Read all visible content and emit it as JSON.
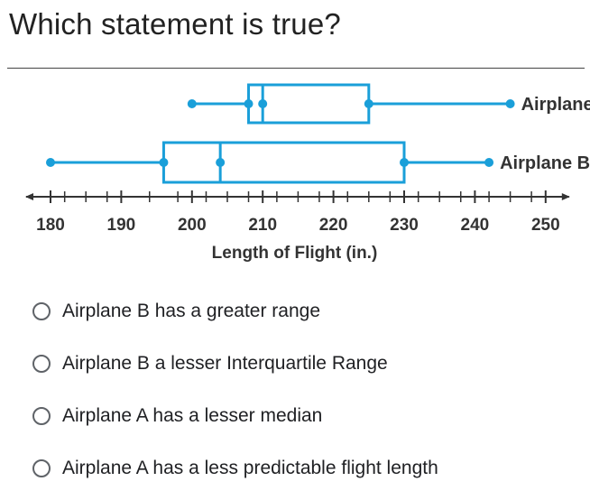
{
  "question": {
    "title": "Which statement is true?"
  },
  "chart_data": {
    "type": "boxplot",
    "title": "",
    "xlabel": "Length of Flight (in.)",
    "ylabel": "",
    "xlim": [
      180,
      250
    ],
    "ticks": [
      180,
      190,
      200,
      210,
      220,
      230,
      240,
      250
    ],
    "tick_labels": [
      "180",
      "190",
      "200",
      "210",
      "220",
      "230",
      "240",
      "250"
    ],
    "minor_ticks": [
      182,
      185,
      188,
      194,
      198,
      202,
      205,
      208,
      212,
      215,
      218,
      222,
      225,
      228,
      232,
      235,
      238,
      242,
      245,
      248
    ],
    "color": "#1a9fd9",
    "series": [
      {
        "name": "Airplane A",
        "min": 200,
        "q1": 208,
        "median": 210,
        "q3": 225,
        "max": 245
      },
      {
        "name": "Airplane B",
        "min": 180,
        "q1": 196,
        "median": 204,
        "q3": 230,
        "max": 242
      }
    ]
  },
  "options": [
    {
      "label": "Airplane B has a greater range",
      "selected": false
    },
    {
      "label": "Airplane B a lesser Interquartile Range",
      "selected": false
    },
    {
      "label": "Airplane A has a lesser median",
      "selected": false
    },
    {
      "label": "Airplane A has a less predictable flight length",
      "selected": false
    }
  ]
}
